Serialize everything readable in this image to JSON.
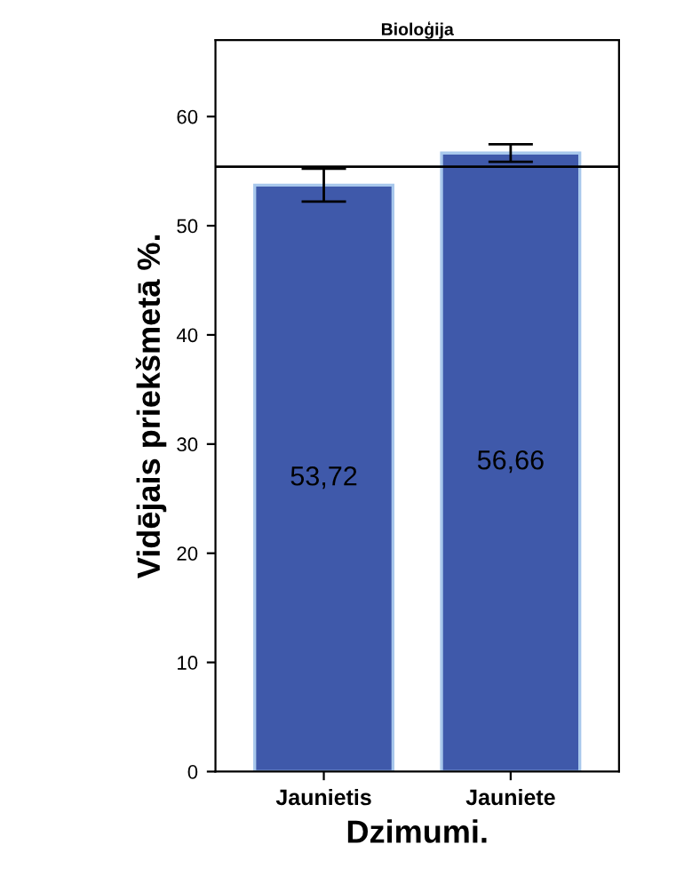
{
  "chart_data": {
    "type": "bar",
    "title": "Bioloģija",
    "xlabel": "Dzimumi.",
    "ylabel": "Vidējais priekšmetā %.",
    "categories": [
      "Jaunietis",
      "Jauniete"
    ],
    "values": [
      53.72,
      56.66
    ],
    "color": "#3f59aa",
    "value_labels": [
      "53,72",
      "56,66"
    ],
    "errors": [
      1.5,
      0.8
    ],
    "ylim": [
      0,
      67
    ],
    "yticks": [
      0,
      10,
      20,
      30,
      40,
      50,
      60
    ],
    "ref_lines": [
      {
        "axis": "y",
        "value": 55.4,
        "label": null,
        "color": "#000000"
      }
    ],
    "grid": false,
    "legend": false
  }
}
